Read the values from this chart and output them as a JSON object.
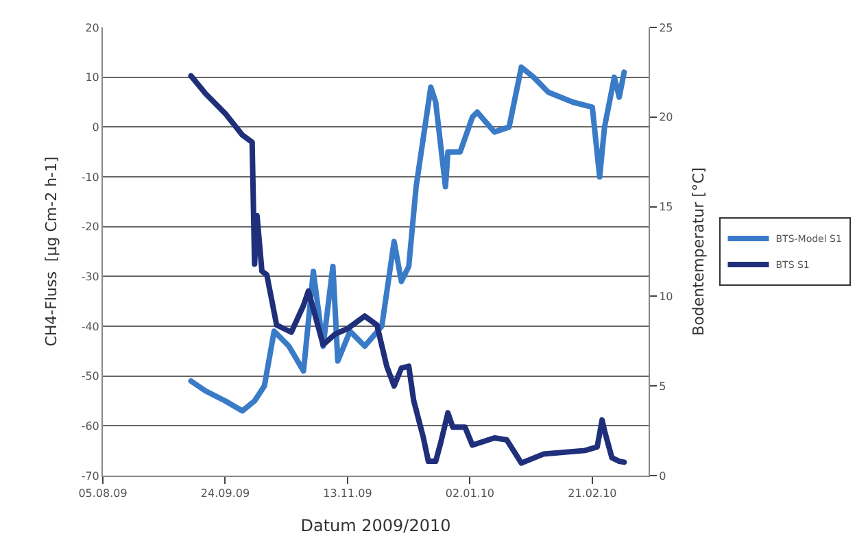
{
  "chart_data": {
    "type": "line",
    "xlabel": "Datum 2009/2010",
    "ylabel": "CH4-Fluss  [µg Cm-2 h-1]",
    "y2label": "Bodentemperatur [°C]",
    "xlim": [
      "2009-08-05",
      "2010-03-16"
    ],
    "xticks": [
      {
        "value": "2009-08-05",
        "label": "05.08.09"
      },
      {
        "value": "2009-09-24",
        "label": "24.09.09"
      },
      {
        "value": "2009-11-13",
        "label": "13.11.09"
      },
      {
        "value": "2010-01-02",
        "label": "02.01.10"
      },
      {
        "value": "2010-02-21",
        "label": "21.02.10"
      }
    ],
    "ylim": [
      -70,
      20
    ],
    "yticks": [
      -70,
      -60,
      -50,
      -40,
      -30,
      -20,
      -10,
      0,
      10,
      20
    ],
    "y2lim": [
      0,
      25
    ],
    "y2ticks": [
      0,
      5,
      10,
      15,
      20,
      25
    ],
    "grid": "y",
    "legend": "right",
    "marker": "none",
    "line_style": "solid",
    "series": [
      {
        "name": "BTS-Model S1",
        "color": "#3a7bc8",
        "x": [
          "2009-09-10",
          "2009-09-16",
          "2009-09-24",
          "2009-10-01",
          "2009-10-06",
          "2009-10-10",
          "2009-10-14",
          "2009-10-20",
          "2009-10-26",
          "2009-10-30",
          "2009-11-03",
          "2009-11-07",
          "2009-11-09",
          "2009-11-14",
          "2009-11-20",
          "2009-11-27",
          "2009-12-02",
          "2009-12-05",
          "2009-12-08",
          "2009-12-11",
          "2009-12-17",
          "2009-12-19",
          "2009-12-23",
          "2009-12-24",
          "2009-12-29",
          "2010-01-03",
          "2010-01-05",
          "2010-01-12",
          "2010-01-18",
          "2010-01-23",
          "2010-01-28",
          "2010-02-03",
          "2010-02-13",
          "2010-02-21",
          "2010-02-24",
          "2010-02-26",
          "2010-03-02",
          "2010-03-04",
          "2010-03-06"
        ],
        "values": [
          -51,
          -53,
          -55,
          -57,
          -55,
          -52,
          -41,
          -44,
          -49,
          -29,
          -44,
          -28,
          -47,
          -41,
          -44,
          -40,
          -23,
          -31,
          -28,
          -12,
          8,
          5,
          -12,
          -5,
          -5,
          2,
          3,
          -1,
          0,
          12,
          10,
          7,
          5,
          4,
          -10,
          0,
          10,
          6,
          11
        ]
      },
      {
        "name": "BTS S1",
        "color": "#1f2f7a",
        "axis": "y2",
        "x": [
          "2009-09-10",
          "2009-09-16",
          "2009-09-24",
          "2009-10-01",
          "2009-10-05",
          "2009-10-06",
          "2009-10-07",
          "2009-10-09",
          "2009-10-11",
          "2009-10-15",
          "2009-10-21",
          "2009-10-26",
          "2009-10-28",
          "2009-11-03",
          "2009-11-08",
          "2009-11-13",
          "2009-11-20",
          "2009-11-25",
          "2009-11-29",
          "2009-12-02",
          "2009-12-05",
          "2009-12-08",
          "2009-12-10",
          "2009-12-14",
          "2009-12-16",
          "2009-12-19",
          "2009-12-21",
          "2009-12-24",
          "2009-12-26",
          "2009-12-31",
          "2010-01-03",
          "2010-01-12",
          "2010-01-17",
          "2010-01-23",
          "2010-02-01",
          "2010-02-18",
          "2010-02-23",
          "2010-02-25",
          "2010-02-26",
          "2010-03-01",
          "2010-03-04",
          "2010-03-06"
        ],
        "values": [
          22.3,
          21.3,
          20.2,
          19,
          18.6,
          11.8,
          14.5,
          11.4,
          11.2,
          8.4,
          8,
          9.5,
          10.3,
          7.3,
          7.9,
          8.2,
          8.9,
          8.4,
          6.1,
          5,
          6,
          6.1,
          4.2,
          2.1,
          0.8,
          0.8,
          1.8,
          3.5,
          2.7,
          2.7,
          1.7,
          2.1,
          2,
          0.7,
          1.2,
          1.4,
          1.6,
          3.1,
          2.5,
          1,
          0.8,
          0.75
        ]
      }
    ]
  }
}
